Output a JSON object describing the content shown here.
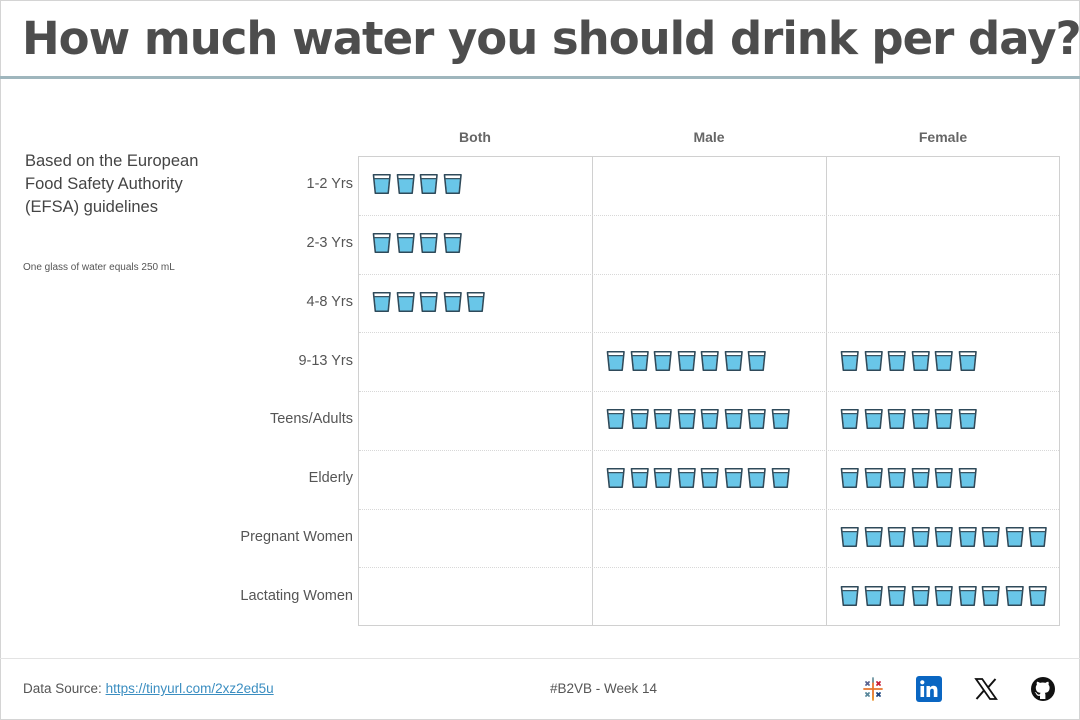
{
  "title": "How much water you should drink per day?",
  "subtitle": "Based on the European Food Safety Authority (EFSA) guidelines",
  "note": "One glass of water equals 250 mL",
  "colors": {
    "glass_fill": "#69c6e8",
    "glass_stroke": "#2f4a5a",
    "title_rule": "#9fb6bd",
    "link": "#3b8ec1"
  },
  "chart_data": {
    "type": "table",
    "columns": [
      "Both",
      "Male",
      "Female"
    ],
    "rows": [
      "1-2 Yrs",
      "2-3 Yrs",
      "4-8 Yrs",
      "9-13 Yrs",
      "Teens/Adults",
      "Elderly",
      "Pregnant Women",
      "Lactating Women"
    ],
    "unit": "glasses",
    "values": [
      [
        4,
        null,
        null
      ],
      [
        4,
        null,
        null
      ],
      [
        5,
        null,
        null
      ],
      [
        null,
        7,
        6
      ],
      [
        null,
        8,
        6
      ],
      [
        null,
        8,
        6
      ],
      [
        null,
        null,
        9
      ],
      [
        null,
        null,
        9
      ]
    ]
  },
  "footer": {
    "source_label": "Data Source:",
    "source_link": "https://tinyurl.com/2xz2ed5u",
    "tag": "#B2VB - Week 14",
    "icons": [
      "tableau-icon",
      "linkedin-icon",
      "x-icon",
      "github-icon"
    ]
  }
}
